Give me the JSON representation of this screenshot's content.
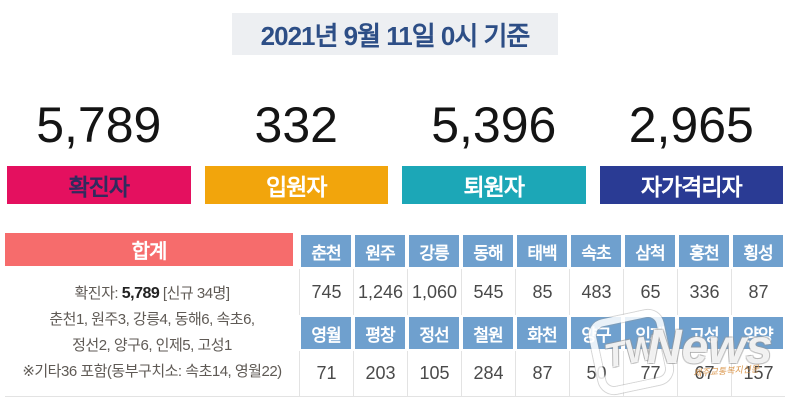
{
  "page": {
    "date_label": "2021년 9월 11일 0시 기준"
  },
  "stats": {
    "items": [
      {
        "value": "5,789",
        "label": "확진자",
        "color": "#e4105f",
        "text_color": "#312a5e"
      },
      {
        "value": "332",
        "label": "입원자",
        "color": "#f2a50c",
        "text_color": "#ffffff"
      },
      {
        "value": "5,396",
        "label": "퇴원자",
        "color": "#1ca7b7",
        "text_color": "#ffffff"
      },
      {
        "value": "2,965",
        "label": "자가격리자",
        "color": "#2a3b94",
        "text_color": "#ffffff"
      }
    ]
  },
  "table": {
    "total_label": "합계",
    "summary": {
      "line1_prefix": "확진자: ",
      "line1_bold": "5,789",
      "line1_suffix": " [신규 34명]",
      "line2": "춘천1, 원주3, 강릉4, 동해6, 속초6,",
      "line3": "정선2, 양구6, 인제5, 고성1",
      "line4": "※기타36 포함(동부구치소: 속초14, 영월22)"
    },
    "row1": {
      "headers": [
        "춘천",
        "원주",
        "강릉",
        "동해",
        "태백",
        "속초",
        "삼척",
        "홍천",
        "횡성"
      ],
      "values": [
        "745",
        "1,246",
        "1,060",
        "545",
        "85",
        "483",
        "65",
        "336",
        "87"
      ]
    },
    "row2": {
      "headers": [
        "영월",
        "평창",
        "정선",
        "철원",
        "화천",
        "양구",
        "인제",
        "고성",
        "양양"
      ],
      "values": [
        "71",
        "203",
        "105",
        "284",
        "87",
        "50",
        "77",
        "67",
        "157"
      ]
    }
  },
  "watermark": {
    "badge": "TW",
    "name": "News",
    "subtext": "제주교통복지신문"
  },
  "colors": {
    "date_text": "#2d4e86",
    "date_bg": "#edeff2",
    "total_header_bg": "#f66c6c",
    "region_header_bg": "#6fa0ce",
    "value_text": "#4a4a4a"
  },
  "chart_data": {
    "type": "table",
    "title": "2021년 9월 11일 0시 기준",
    "summary": [
      {
        "label": "확진자",
        "value": 5789
      },
      {
        "label": "입원자",
        "value": 332
      },
      {
        "label": "퇴원자",
        "value": 5396
      },
      {
        "label": "자가격리자",
        "value": 2965
      }
    ],
    "new_cases_note": "신규 34명",
    "new_cases_breakdown": "춘천1, 원주3, 강릉4, 동해6, 속초6, 정선2, 양구6, 인제5, 고성1",
    "footnote": "※기타36 포함(동부구치소: 속초14, 영월22)",
    "categories": [
      "춘천",
      "원주",
      "강릉",
      "동해",
      "태백",
      "속초",
      "삼척",
      "홍천",
      "횡성",
      "영월",
      "평창",
      "정선",
      "철원",
      "화천",
      "양구",
      "인제",
      "고성",
      "양양"
    ],
    "values": [
      745,
      1246,
      1060,
      545,
      85,
      483,
      65,
      336,
      87,
      71,
      203,
      105,
      284,
      87,
      50,
      77,
      67,
      157
    ]
  }
}
